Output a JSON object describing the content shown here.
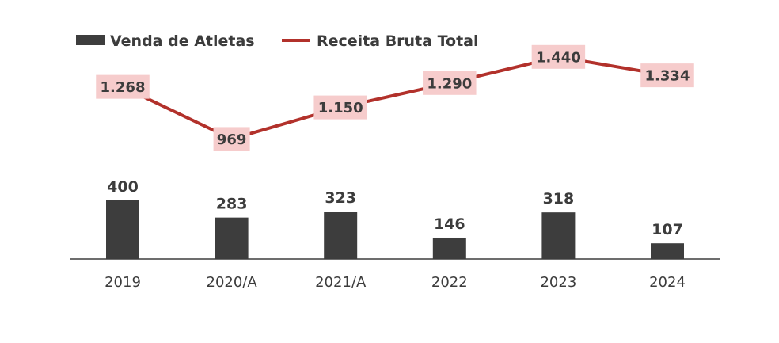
{
  "colors": {
    "bar": "#3d3d3d",
    "line": "#b2312b",
    "label_bg": "#f6cccc",
    "axis": "#3d3d3d",
    "text": "#3c3c3c"
  },
  "chart_data": {
    "type": "bar+line",
    "title": "",
    "xlabel": "",
    "ylabel": "",
    "categories": [
      "2019",
      "2020/A",
      "2021/A",
      "2022",
      "2023",
      "2024"
    ],
    "series": [
      {
        "name": "Venda de Atletas",
        "type": "bar",
        "values": [
          400,
          283,
          323,
          146,
          318,
          107
        ],
        "labels": [
          "400",
          "283",
          "323",
          "146",
          "318",
          "107"
        ]
      },
      {
        "name": "Receita Bruta Total",
        "type": "line",
        "values": [
          1268,
          969,
          1150,
          1290,
          1440,
          1334
        ],
        "labels": [
          "1.268",
          "969",
          "1.150",
          "1.290",
          "1.440",
          "1.334"
        ]
      }
    ],
    "legend_position": "top-left",
    "grid": false
  }
}
